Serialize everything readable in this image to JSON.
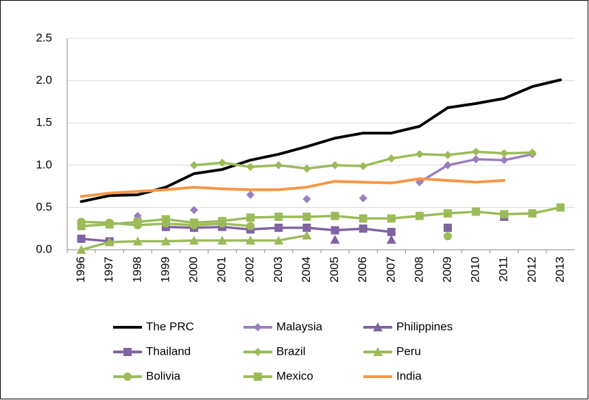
{
  "chart_data": {
    "type": "line",
    "categories": [
      "1996",
      "1997",
      "1998",
      "1999",
      "2000",
      "2001",
      "2002",
      "2003",
      "2004",
      "2005",
      "2006",
      "2007",
      "2008",
      "2009",
      "2010",
      "2011",
      "2012",
      "2013"
    ],
    "ylim": [
      0,
      2.5
    ],
    "yticks": [
      {
        "value": 0,
        "label": "0.0"
      },
      0.5,
      {
        "value": 1,
        "label": "1.0"
      },
      1.5,
      {
        "value": 2,
        "label": "2.0"
      },
      2.5
    ],
    "grid": true,
    "legend": "bottom",
    "series": [
      {
        "name": "The PRC",
        "color": "#000000",
        "marker": "none",
        "values": [
          0.57,
          0.64,
          0.65,
          0.74,
          0.9,
          0.95,
          1.06,
          1.13,
          1.22,
          1.32,
          1.38,
          1.38,
          1.46,
          1.68,
          1.73,
          1.79,
          1.93,
          2.01
        ]
      },
      {
        "name": "Malaysia",
        "color": "#9b7fc0",
        "marker": "diamond",
        "values": [
          null,
          null,
          0.4,
          null,
          0.47,
          null,
          0.65,
          null,
          0.6,
          null,
          0.61,
          null,
          0.8,
          1.0,
          1.07,
          1.06,
          1.13,
          null
        ]
      },
      {
        "name": "Philippines",
        "color": "#8064a2",
        "marker": "triangle",
        "values": [
          null,
          null,
          null,
          null,
          null,
          null,
          null,
          null,
          null,
          0.12,
          null,
          0.12,
          null,
          null,
          null,
          null,
          null,
          null
        ]
      },
      {
        "name": "Thailand",
        "color": "#8064a2",
        "marker": "square",
        "values": [
          0.13,
          0.1,
          null,
          0.27,
          0.26,
          0.27,
          0.24,
          0.26,
          0.26,
          0.23,
          0.25,
          0.21,
          null,
          0.26,
          null,
          0.39,
          null,
          null
        ]
      },
      {
        "name": "Brazil",
        "color": "#9bbb59",
        "marker": "diamond",
        "values": [
          null,
          null,
          null,
          null,
          1.0,
          1.03,
          0.98,
          1.0,
          0.96,
          1.0,
          0.99,
          1.08,
          1.13,
          1.12,
          1.16,
          1.14,
          1.15,
          null
        ]
      },
      {
        "name": "Peru",
        "color": "#9bbb59",
        "marker": "triangle",
        "values": [
          0.0,
          0.09,
          0.1,
          0.1,
          0.11,
          0.11,
          0.11,
          0.11,
          0.17,
          null,
          null,
          null,
          null,
          null,
          null,
          null,
          null,
          null
        ]
      },
      {
        "name": "Bolivia",
        "color": "#9bbb59",
        "marker": "circle",
        "values": [
          0.33,
          0.32,
          0.29,
          0.31,
          0.29,
          0.31,
          0.28,
          null,
          null,
          null,
          null,
          null,
          null,
          0.16,
          null,
          null,
          null,
          null
        ]
      },
      {
        "name": "Mexico",
        "color": "#9bbb59",
        "marker": "square",
        "values": [
          0.28,
          0.3,
          0.33,
          0.36,
          0.32,
          0.34,
          0.38,
          0.39,
          0.39,
          0.4,
          0.37,
          0.37,
          0.4,
          0.43,
          0.45,
          0.42,
          0.43,
          0.5
        ]
      },
      {
        "name": "India",
        "color": "#f79646",
        "marker": "none",
        "values": [
          0.63,
          0.67,
          0.69,
          0.71,
          0.74,
          0.72,
          0.71,
          0.71,
          0.74,
          0.81,
          0.8,
          0.79,
          0.84,
          0.82,
          0.8,
          0.82,
          null,
          null
        ]
      }
    ]
  }
}
